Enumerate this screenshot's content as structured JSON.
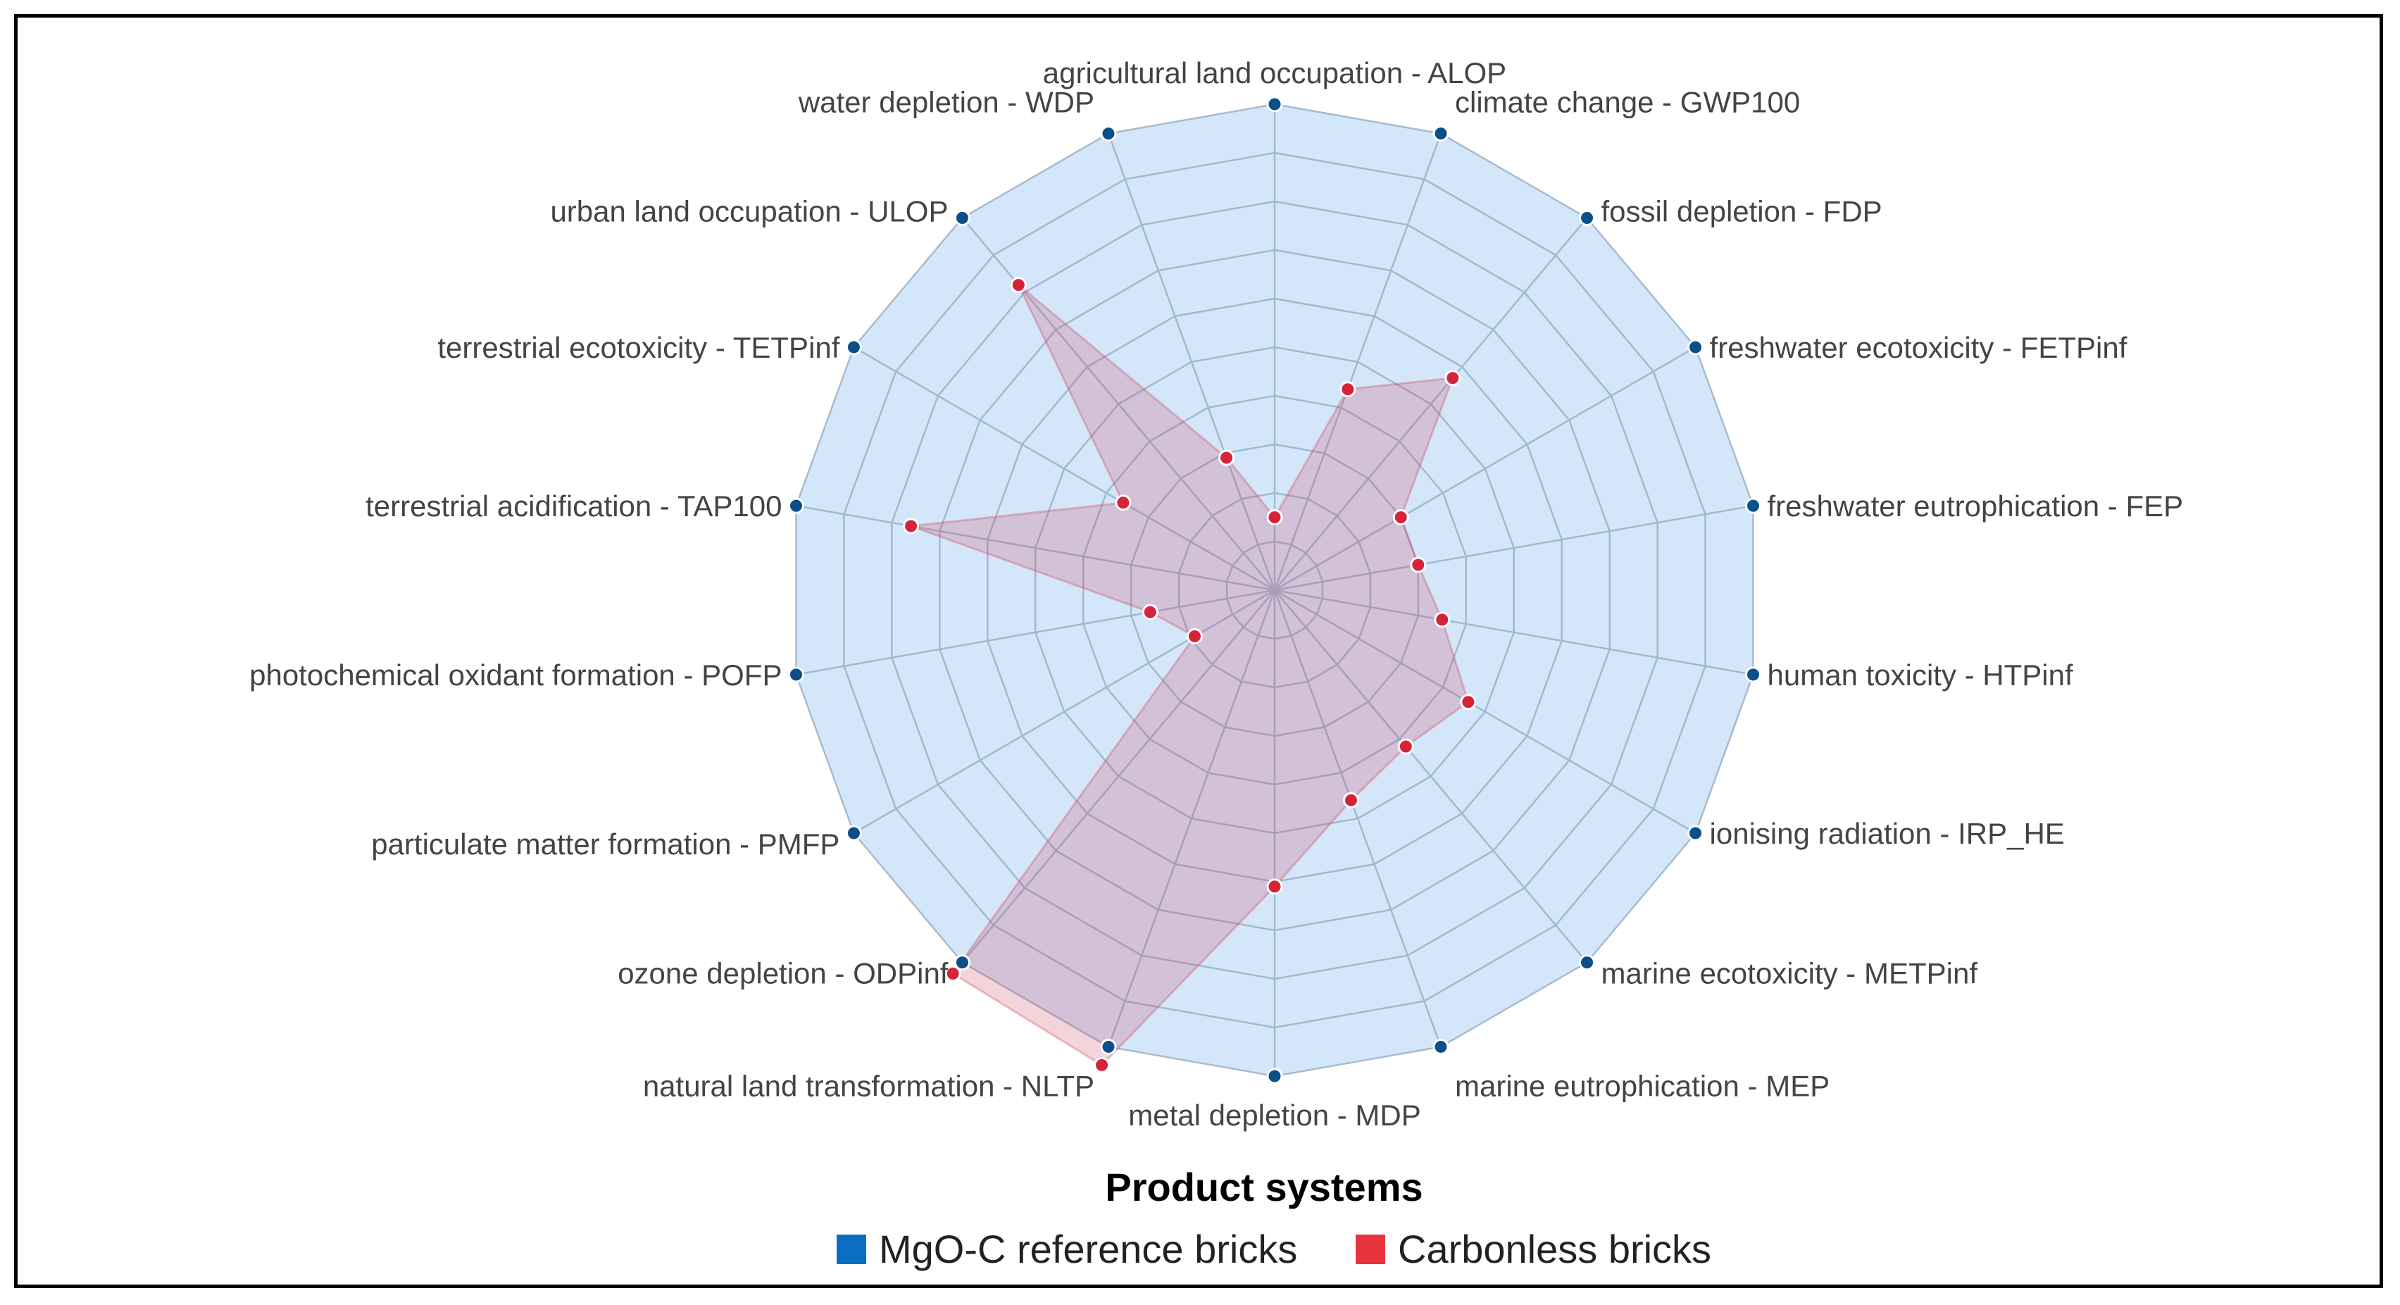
{
  "chart_data": {
    "type": "radar",
    "legend": {
      "title": "Product systems",
      "position": "bottom",
      "entries": [
        {
          "name": "MgO-C reference bricks",
          "color": "#0a6ec2"
        },
        {
          "name": "Carbonless bricks",
          "color": "#e8333d"
        }
      ]
    },
    "r_range": [
      0,
      100
    ],
    "grid_rings": 10,
    "axes": [
      "agricultural land occupation - ALOP",
      "climate change - GWP100",
      "fossil depletion - FDP",
      "freshwater ecotoxicity - FETPinf",
      "freshwater eutrophication - FEP",
      "human toxicity - HTPinf",
      "ionising radiation - IRP_HE",
      "marine ecotoxicity - METPinf",
      "marine eutrophication - MEP",
      "metal depletion - MDP",
      "natural land transformation - NLTP",
      "ozone depletion - ODPinf",
      "particulate matter formation - PMFP",
      "photochemical oxidant formation - POFP",
      "terrestrial acidification - TAP100",
      "terrestrial ecotoxicity - TETPinf",
      "urban land occupation - ULOP",
      "water depletion - WDP"
    ],
    "series": [
      {
        "name": "MgO-C reference bricks",
        "color": "#0a6ec2",
        "values": [
          100,
          100,
          100,
          100,
          100,
          100,
          100,
          100,
          100,
          100,
          100,
          100,
          100,
          100,
          100,
          100,
          100,
          100
        ]
      },
      {
        "name": "Carbonless bricks",
        "color": "#e8333d",
        "values": [
          15,
          44,
          57,
          30,
          30,
          35,
          46,
          42,
          46,
          61,
          104,
          103,
          19,
          26,
          76,
          36,
          82,
          29
        ]
      }
    ]
  }
}
